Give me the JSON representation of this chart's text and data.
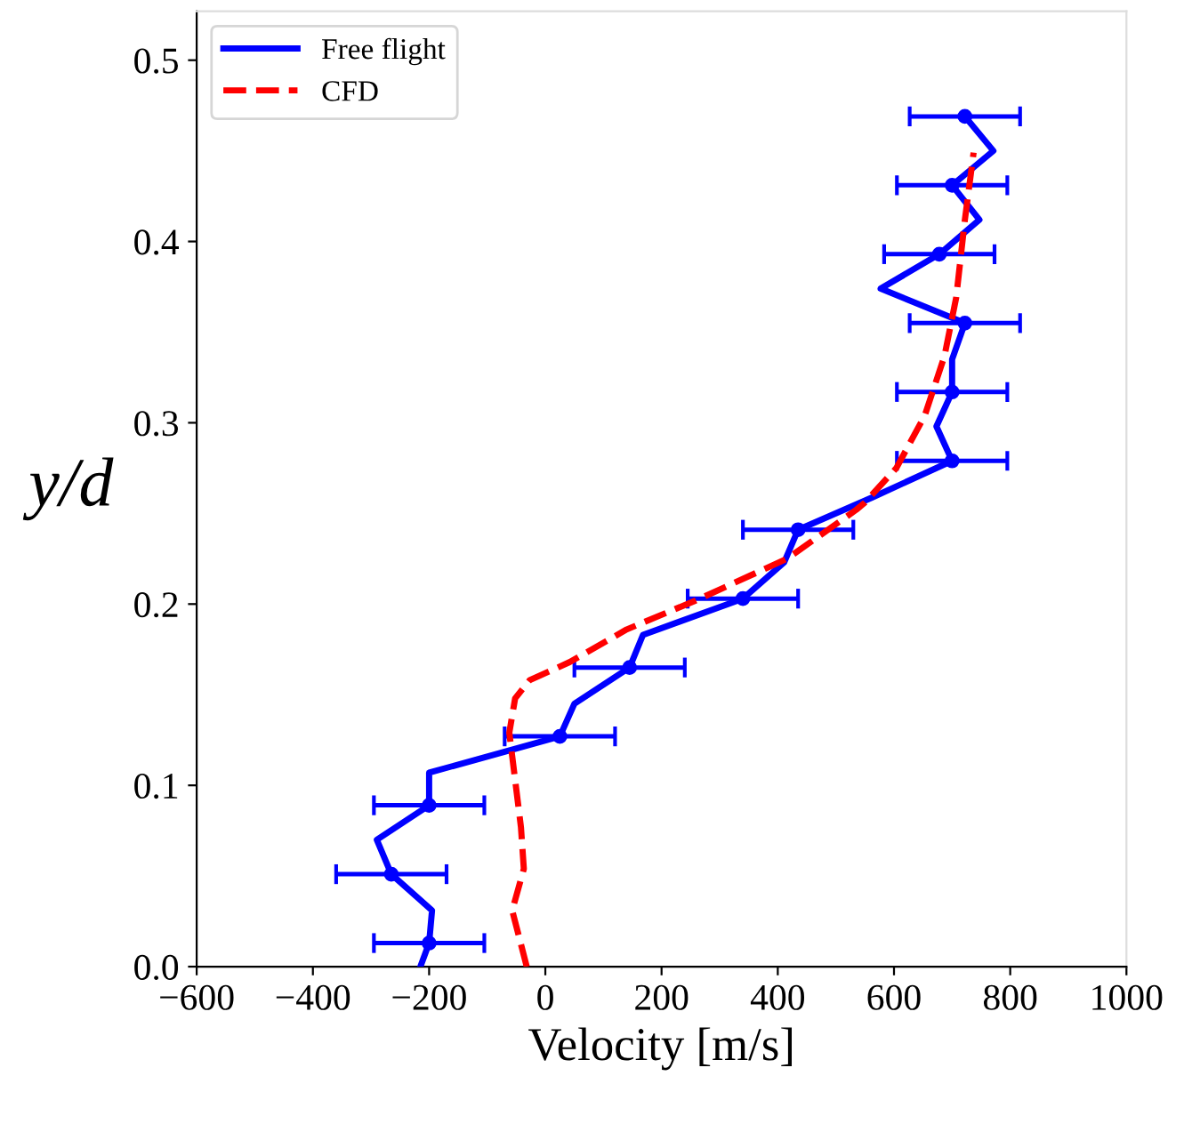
{
  "chart_data": {
    "type": "line",
    "xlabel": "Velocity [m/s]",
    "ylabel": "y/d",
    "xlim": [
      -600,
      1000
    ],
    "xticks": [
      -600,
      -400,
      -200,
      0,
      200,
      400,
      600,
      800,
      1000
    ],
    "ylim": [
      0,
      0.527
    ],
    "yticks": [
      {
        "value": 0,
        "label": "0.0"
      },
      0.1,
      0.2,
      0.3,
      0.4,
      0.5
    ],
    "grid": false,
    "legend": "top left",
    "series": [
      {
        "name": "Free flight",
        "color": "#0000ff",
        "line_style": "solid",
        "marker": "none",
        "x": [
          -215,
          -200,
          -195,
          -265,
          -290,
          -200,
          -200,
          25,
          50,
          145,
          168,
          340,
          411,
          435,
          564,
          700,
          673,
          700,
          700,
          722,
          577,
          678,
          747,
          700,
          771,
          722
        ],
        "values": [
          0,
          0.013,
          0.031,
          0.051,
          0.07,
          0.089,
          0.107,
          0.127,
          0.145,
          0.165,
          0.183,
          0.203,
          0.223,
          0.241,
          0.259,
          0.279,
          0.298,
          0.317,
          0.335,
          0.355,
          0.374,
          0.393,
          0.412,
          0.431,
          0.45,
          0.469
        ]
      },
      {
        "type": "scatter",
        "color": "#0000ff",
        "marker": "circle",
        "x": [
          -200,
          -265,
          -200,
          25,
          145,
          340,
          435,
          700,
          700,
          722,
          678,
          700,
          722
        ],
        "values": [
          0.013,
          0.051,
          0.089,
          0.127,
          0.165,
          0.203,
          0.241,
          0.279,
          0.317,
          0.355,
          0.393,
          0.431,
          0.469
        ],
        "xerrors": [
          95,
          95,
          95,
          95,
          95,
          95,
          95,
          95,
          95,
          95,
          95,
          95,
          95
        ]
      },
      {
        "name": "CFD",
        "color": "#ff0000",
        "line_style": "dashed",
        "marker": "none",
        "x": [
          -32,
          -57,
          -37,
          -42,
          -52,
          -62,
          -52,
          -27,
          42,
          140,
          259,
          416,
          535,
          550,
          604,
          653,
          687,
          707,
          722,
          737
        ],
        "values": [
          0,
          0.031,
          0.054,
          0.077,
          0.103,
          0.129,
          0.148,
          0.158,
          0.168,
          0.186,
          0.202,
          0.225,
          0.252,
          0.256,
          0.275,
          0.304,
          0.337,
          0.369,
          0.412,
          0.449
        ]
      }
    ]
  }
}
